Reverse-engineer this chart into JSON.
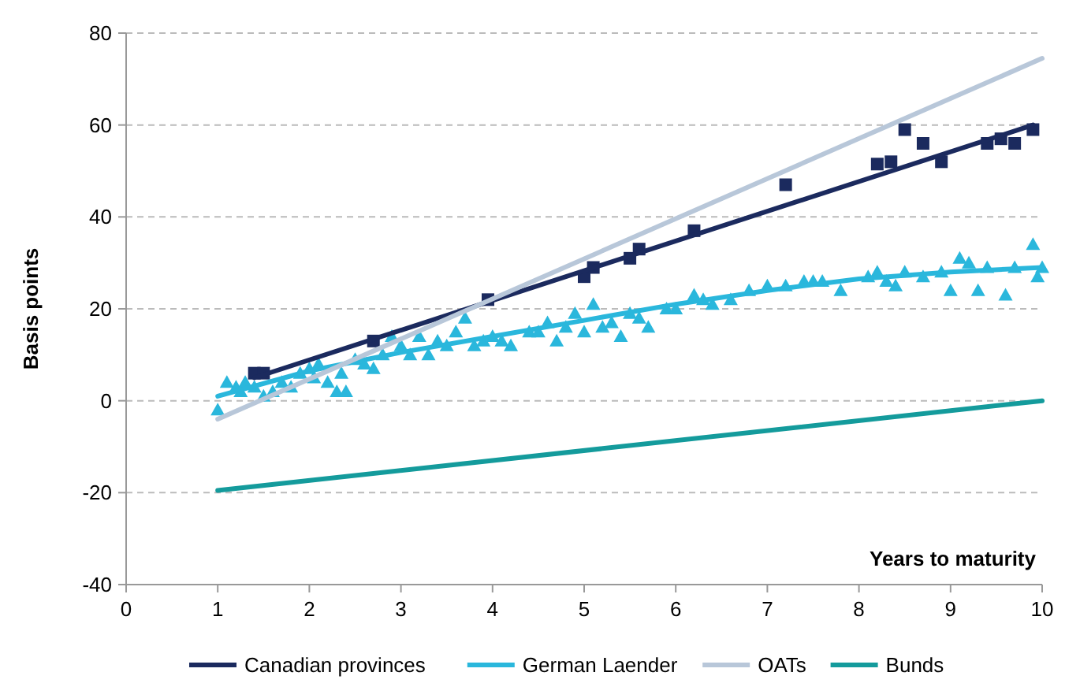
{
  "chart_data": {
    "type": "line",
    "xlabel": "Years to maturity",
    "ylabel": "Basis points",
    "xlim": [
      0,
      10
    ],
    "xticks": [
      0,
      1,
      2,
      3,
      4,
      5,
      6,
      7,
      8,
      9,
      10
    ],
    "ylim": [
      -40,
      80
    ],
    "yticks": [
      -40,
      -20,
      0,
      20,
      40,
      60,
      80
    ],
    "grid": "y",
    "legend": "bottom",
    "line_style": "solid",
    "series": [
      {
        "type": "scatter",
        "marker": "square",
        "color": "#1b2a5e",
        "x": [
          1.4,
          1.5,
          2.7,
          3.95,
          5,
          5.1,
          5.5,
          5.6,
          6.2,
          7.2,
          8.2,
          8.35,
          8.5,
          8.7,
          8.9,
          9.4,
          9.55,
          9.7,
          9.9
        ],
        "values": [
          6,
          6,
          13,
          22,
          27,
          29,
          31,
          33,
          37,
          47,
          51.5,
          52,
          59,
          56,
          52,
          56,
          57,
          56,
          59
        ]
      },
      {
        "type": "scatter",
        "marker": "triangle",
        "color": "#2ab7dc",
        "x": [
          1,
          1.1,
          1.2,
          1.25,
          1.3,
          1.4,
          1.5,
          1.6,
          1.7,
          1.8,
          1.9,
          2,
          2.05,
          2.1,
          2.2,
          2.3,
          2.35,
          2.4,
          2.5,
          2.6,
          2.7,
          2.8,
          2.9,
          3,
          3.1,
          3.2,
          3.3,
          3.4,
          3.5,
          3.6,
          3.7,
          3.8,
          3.9,
          4,
          4.1,
          4.2,
          4.4,
          4.5,
          4.6,
          4.7,
          4.8,
          4.9,
          5,
          5.1,
          5.2,
          5.3,
          5.4,
          5.5,
          5.6,
          5.7,
          5.9,
          6,
          6.2,
          6.3,
          6.4,
          6.6,
          6.8,
          7,
          7.2,
          7.4,
          7.5,
          7.6,
          7.8,
          8.1,
          8.2,
          8.3,
          8.4,
          8.5,
          8.7,
          8.9,
          9,
          9.1,
          9.2,
          9.3,
          9.4,
          9.6,
          9.7,
          9.9,
          9.95,
          10
        ],
        "values": [
          -2,
          4,
          3,
          2,
          4,
          3,
          1,
          2,
          4,
          3,
          6,
          7,
          5,
          8,
          4,
          2,
          6,
          2,
          9,
          8,
          7,
          10,
          14,
          12,
          10,
          14,
          10,
          13,
          12,
          15,
          18,
          12,
          13,
          14,
          13,
          12,
          15,
          15,
          17,
          13,
          16,
          19,
          15,
          21,
          16,
          17,
          14,
          19,
          18,
          16,
          20,
          20,
          23,
          22,
          21,
          22,
          24,
          25,
          25,
          26,
          26,
          26,
          24,
          27,
          28,
          26,
          25,
          28,
          27,
          28,
          24,
          31,
          30,
          24,
          29,
          23,
          29,
          34,
          27,
          29
        ]
      },
      {
        "marker": "none",
        "name": "Canadian provinces",
        "color": "#1b2a5e",
        "x": [
          1.4,
          9.9
        ],
        "values": [
          5,
          60
        ]
      },
      {
        "marker": "none",
        "name": "German Laender",
        "color": "#2ab7dc",
        "x": [
          1,
          2,
          3,
          4,
          5,
          6,
          7,
          8,
          9,
          10
        ],
        "values": [
          1,
          6.5,
          10.5,
          14,
          17.5,
          21,
          24,
          26.5,
          28,
          29
        ]
      },
      {
        "marker": "none",
        "name": "OATs",
        "color": "#b8c7d9",
        "x": [
          1,
          10
        ],
        "values": [
          -4,
          74.5
        ]
      },
      {
        "marker": "none",
        "name": "Bunds",
        "color": "#149b9c",
        "x": [
          1,
          10
        ],
        "values": [
          -19.5,
          0
        ]
      }
    ]
  }
}
